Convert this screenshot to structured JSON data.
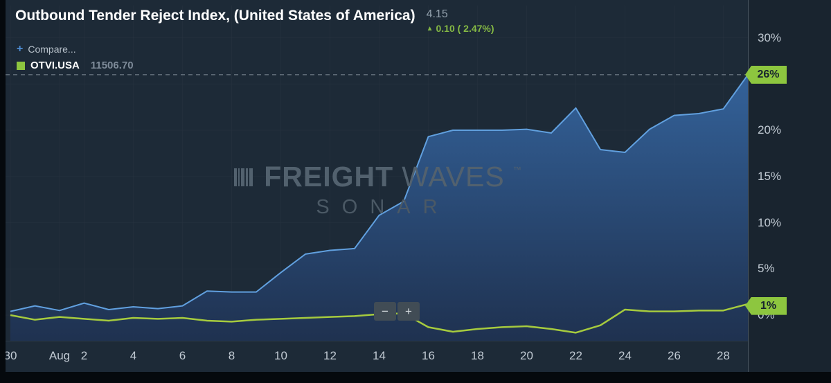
{
  "header": {
    "title": "Outbound Tender Reject Index, (United States of America)",
    "value": "4.15",
    "change_arrow": "▲",
    "change_text": "0.10 ( 2.47%)",
    "compare_plus": "+",
    "compare_label": "Compare...",
    "legend_symbol": "OTVI.USA",
    "legend_value": "11506.70"
  },
  "watermark": {
    "brand_bold": "FREIGHT",
    "brand_light": "WAVES",
    "trademark": "™",
    "sub": "SONAR"
  },
  "zoom_controls": {
    "minus": "−",
    "plus": "+"
  },
  "colors": {
    "background": "#1d2a37",
    "axis_panel": "#19242f",
    "accent_green": "#8dc63f",
    "blue_line": "#61a0df",
    "area_top": "#35659f",
    "area_bottom": "#1f3252",
    "green_line": "#a6cb3e",
    "grid": "#27333f",
    "dashed": "#8e99a4",
    "axis_text": "#c2cbd4"
  },
  "chart_data": {
    "type": "area",
    "title": "Outbound Tender Reject Index, (United States of America)",
    "xlabel": "",
    "ylabel": "percent",
    "ylim": [
      -3,
      33
    ],
    "grid": true,
    "legend_position": "top-left",
    "x_unit": "day index from Jul 30 to Aug 29",
    "x_ticks": [
      {
        "day": 0,
        "label": "30"
      },
      {
        "day": 2,
        "label": "Aug"
      },
      {
        "day": 3,
        "label": "2"
      },
      {
        "day": 5,
        "label": "4"
      },
      {
        "day": 7,
        "label": "6"
      },
      {
        "day": 9,
        "label": "8"
      },
      {
        "day": 11,
        "label": "10"
      },
      {
        "day": 13,
        "label": "12"
      },
      {
        "day": 15,
        "label": "14"
      },
      {
        "day": 17,
        "label": "16"
      },
      {
        "day": 19,
        "label": "18"
      },
      {
        "day": 21,
        "label": "20"
      },
      {
        "day": 23,
        "label": "22"
      },
      {
        "day": 25,
        "label": "24"
      },
      {
        "day": 27,
        "label": "26"
      },
      {
        "day": 29,
        "label": "28"
      }
    ],
    "y_ticks": [
      {
        "value": 30,
        "label": "30%"
      },
      {
        "value": 20,
        "label": "20%"
      },
      {
        "value": 15,
        "label": "15%"
      },
      {
        "value": 10,
        "label": "10%"
      },
      {
        "value": 5,
        "label": "5%"
      },
      {
        "value": 0,
        "label": "0%"
      }
    ],
    "y_grid_values": [
      0,
      5,
      10,
      15,
      20,
      25,
      30
    ],
    "badges": [
      {
        "value": 26,
        "label": "26%"
      },
      {
        "value": 1,
        "label": "1%"
      }
    ],
    "dashed_line_value": 26,
    "series": [
      {
        "name": "blue_area",
        "color": "#61a0df",
        "fill": true,
        "values": [
          0.4,
          1.0,
          0.5,
          1.3,
          0.6,
          0.9,
          0.7,
          1.0,
          2.6,
          2.5,
          2.5,
          4.6,
          6.6,
          7.0,
          7.2,
          10.8,
          12.3,
          19.3,
          20.0,
          20.0,
          20.0,
          20.1,
          19.7,
          22.4,
          17.9,
          17.6,
          20.1,
          21.6,
          21.8,
          22.3,
          26.0
        ]
      },
      {
        "name": "green_line (OTVI.USA)",
        "color": "#a6cb3e",
        "fill": false,
        "values": [
          0.0,
          -0.5,
          -0.2,
          -0.4,
          -0.6,
          -0.3,
          -0.4,
          -0.3,
          -0.6,
          -0.7,
          -0.5,
          -0.4,
          -0.3,
          -0.2,
          -0.1,
          0.1,
          0.2,
          -1.3,
          -1.8,
          -1.5,
          -1.3,
          -1.2,
          -1.5,
          -1.9,
          -1.1,
          0.6,
          0.4,
          0.4,
          0.5,
          0.5,
          1.2
        ]
      }
    ]
  }
}
